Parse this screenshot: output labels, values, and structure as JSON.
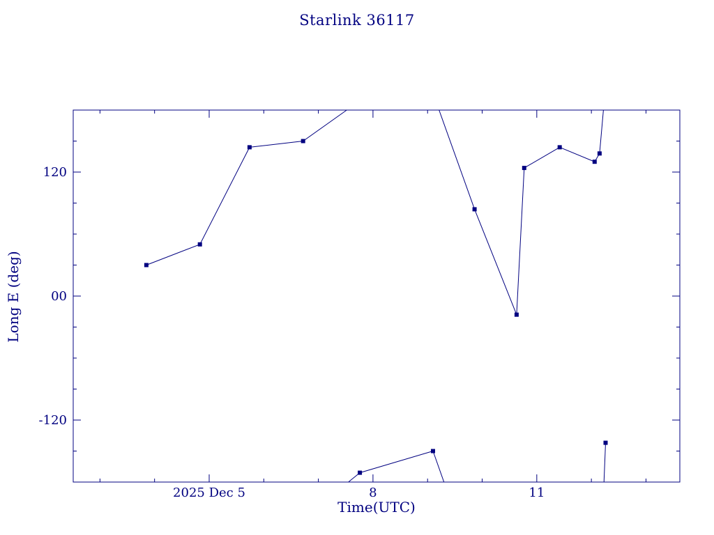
{
  "page": {
    "background": "#ffffff",
    "accent_color": "#000080"
  },
  "chart_data": {
    "type": "line",
    "title": "Starlink 36117",
    "xlabel": "Time(UTC)",
    "ylabel": "Long E (deg)",
    "series_color": "#000080",
    "marker_shape": "filled-square",
    "grid": false,
    "legend": null,
    "xlim": [
      2.51,
      13.62
    ],
    "ylim": [
      -180,
      180
    ],
    "x_ticks_major": [
      {
        "v": 5,
        "label": "2025 Dec 5"
      },
      {
        "v": 8,
        "label": "8"
      },
      {
        "v": 11,
        "label": "11"
      }
    ],
    "x_ticks_minor": [
      3,
      4,
      6,
      7,
      9,
      10,
      12,
      13
    ],
    "y_ticks_major": [
      {
        "v": 120,
        "label": "120"
      },
      {
        "v": 0,
        "label": "00"
      },
      {
        "v": -120,
        "label": "-120"
      }
    ],
    "y_ticks_minor": [
      -150,
      -90,
      -60,
      -30,
      30,
      60,
      90,
      150
    ],
    "segments": [
      {
        "points": [
          [
            3.85,
            30
          ],
          [
            4.83,
            50
          ],
          [
            5.74,
            144
          ],
          [
            6.72,
            150
          ],
          [
            7.52,
            180
          ]
        ]
      },
      {
        "points": [
          [
            7.55,
            -180
          ],
          [
            7.76,
            -171
          ],
          [
            9.1,
            -150
          ],
          [
            9.3,
            -180
          ]
        ]
      },
      {
        "points": [
          [
            9.21,
            180
          ],
          [
            9.86,
            84
          ],
          [
            10.63,
            -18
          ],
          [
            10.77,
            124
          ],
          [
            11.42,
            144
          ],
          [
            12.06,
            130
          ],
          [
            12.15,
            138
          ],
          [
            12.22,
            180
          ]
        ]
      },
      {
        "points": [
          [
            12.23,
            -180
          ],
          [
            12.26,
            -142
          ]
        ]
      }
    ],
    "markers": [
      [
        3.85,
        30
      ],
      [
        4.83,
        50
      ],
      [
        5.74,
        144
      ],
      [
        6.72,
        150
      ],
      [
        7.76,
        -171
      ],
      [
        9.1,
        -150
      ],
      [
        9.86,
        84
      ],
      [
        10.63,
        -18
      ],
      [
        10.77,
        124
      ],
      [
        11.42,
        144
      ],
      [
        12.06,
        130
      ],
      [
        12.15,
        138
      ],
      [
        12.26,
        -142
      ]
    ]
  }
}
